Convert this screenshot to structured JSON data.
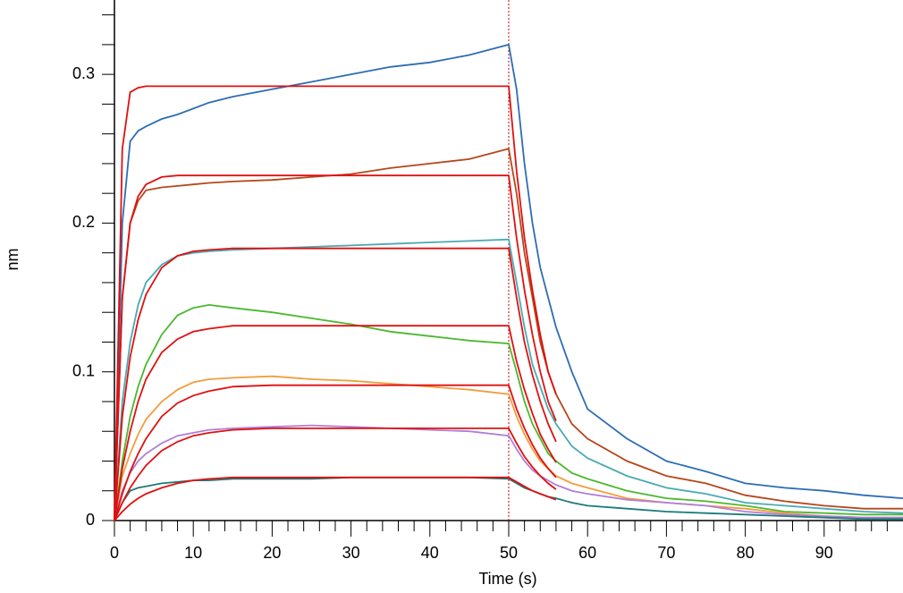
{
  "chart_data": {
    "type": "line",
    "x_label": "Time (s)",
    "y_label": "nm",
    "x": [
      0,
      1,
      2,
      3,
      4,
      6,
      8,
      10,
      12,
      15,
      20,
      25,
      30,
      35,
      40,
      45,
      50,
      51,
      52,
      53,
      54,
      55,
      56,
      58,
      60,
      65,
      70,
      75,
      80,
      85,
      90,
      95,
      100
    ],
    "series": [
      {
        "color": "#2e6db4",
        "values": [
          0,
          0.2,
          0.255,
          0.262,
          0.265,
          0.27,
          0.273,
          0.277,
          0.281,
          0.285,
          0.29,
          0.295,
          0.3,
          0.305,
          0.308,
          0.313,
          0.32,
          0.29,
          0.24,
          0.2,
          0.17,
          0.15,
          0.13,
          0.1,
          0.075,
          0.055,
          0.04,
          0.033,
          0.025,
          0.022,
          0.02,
          0.017,
          0.015
        ]
      },
      {
        "color": "#b5471b",
        "values": [
          0,
          0.15,
          0.2,
          0.215,
          0.222,
          0.224,
          0.225,
          0.226,
          0.227,
          0.228,
          0.229,
          0.231,
          0.233,
          0.237,
          0.24,
          0.243,
          0.25,
          0.22,
          0.18,
          0.15,
          0.12,
          0.1,
          0.085,
          0.065,
          0.055,
          0.04,
          0.03,
          0.025,
          0.017,
          0.013,
          0.01,
          0.008,
          0.008
        ]
      },
      {
        "color": "#4aaab4",
        "values": [
          0,
          0.08,
          0.12,
          0.145,
          0.16,
          0.172,
          0.178,
          0.18,
          0.181,
          0.182,
          0.183,
          0.184,
          0.185,
          0.186,
          0.187,
          0.188,
          0.189,
          0.16,
          0.13,
          0.105,
          0.09,
          0.075,
          0.065,
          0.05,
          0.042,
          0.03,
          0.022,
          0.018,
          0.012,
          0.01,
          0.008,
          0.006,
          0.005
        ]
      },
      {
        "color": "#4cb82f",
        "values": [
          0,
          0.04,
          0.07,
          0.09,
          0.105,
          0.125,
          0.138,
          0.143,
          0.145,
          0.143,
          0.14,
          0.136,
          0.132,
          0.127,
          0.124,
          0.121,
          0.119,
          0.1,
          0.08,
          0.065,
          0.055,
          0.045,
          0.04,
          0.032,
          0.028,
          0.02,
          0.015,
          0.013,
          0.01,
          0.006,
          0.005,
          0.004,
          0.004
        ]
      },
      {
        "color": "#f39c3c",
        "values": [
          0,
          0.03,
          0.045,
          0.058,
          0.068,
          0.08,
          0.088,
          0.093,
          0.095,
          0.096,
          0.097,
          0.095,
          0.094,
          0.092,
          0.09,
          0.088,
          0.085,
          0.07,
          0.058,
          0.048,
          0.04,
          0.035,
          0.03,
          0.025,
          0.022,
          0.015,
          0.012,
          0.01,
          0.008,
          0.005,
          0.003,
          0.002,
          0.002
        ]
      },
      {
        "color": "#b07ed8",
        "values": [
          0,
          0.02,
          0.032,
          0.04,
          0.045,
          0.052,
          0.057,
          0.059,
          0.061,
          0.062,
          0.063,
          0.064,
          0.063,
          0.062,
          0.061,
          0.06,
          0.057,
          0.048,
          0.04,
          0.034,
          0.03,
          0.027,
          0.024,
          0.02,
          0.018,
          0.014,
          0.012,
          0.01,
          0.006,
          0.004,
          0.003,
          0.002,
          0.002
        ]
      },
      {
        "color": "#1f7a7a",
        "values": [
          0,
          0.012,
          0.02,
          0.022,
          0.023,
          0.025,
          0.026,
          0.027,
          0.027,
          0.028,
          0.028,
          0.028,
          0.029,
          0.029,
          0.029,
          0.029,
          0.028,
          0.025,
          0.022,
          0.02,
          0.018,
          0.016,
          0.015,
          0.012,
          0.01,
          0.008,
          0.006,
          0.005,
          0.004,
          0.003,
          0.002,
          0.001,
          0.001
        ]
      },
      {
        "color": "#e01010",
        "values": [
          0,
          0.25,
          0.288,
          0.291,
          0.292,
          0.292,
          0.292,
          0.292,
          0.292,
          0.292,
          0.292,
          0.292,
          0.292,
          0.292,
          0.292,
          0.292,
          0.292,
          0.235,
          0.19,
          0.155,
          0.125,
          0.1,
          0.085,
          null,
          null,
          null,
          null,
          null,
          null,
          null,
          null,
          null,
          null
        ]
      },
      {
        "color": "#e01010",
        "values": [
          0,
          0.15,
          0.2,
          0.218,
          0.226,
          0.231,
          0.232,
          0.232,
          0.232,
          0.232,
          0.232,
          0.232,
          0.232,
          0.232,
          0.232,
          0.232,
          0.232,
          0.19,
          0.155,
          0.125,
          0.1,
          0.08,
          0.067,
          null,
          null,
          null,
          null,
          null,
          null,
          null,
          null,
          null,
          null
        ]
      },
      {
        "color": "#e01010",
        "values": [
          0,
          0.07,
          0.11,
          0.135,
          0.152,
          0.17,
          0.178,
          0.181,
          0.182,
          0.183,
          0.183,
          0.183,
          0.183,
          0.183,
          0.183,
          0.183,
          0.183,
          0.15,
          0.12,
          0.098,
          0.08,
          0.065,
          0.053,
          null,
          null,
          null,
          null,
          null,
          null,
          null,
          null,
          null,
          null
        ]
      },
      {
        "color": "#e01010",
        "values": [
          0,
          0.035,
          0.06,
          0.08,
          0.095,
          0.113,
          0.122,
          0.127,
          0.129,
          0.131,
          0.131,
          0.131,
          0.131,
          0.131,
          0.131,
          0.131,
          0.131,
          0.107,
          0.088,
          0.072,
          0.058,
          0.048,
          0.039,
          null,
          null,
          null,
          null,
          null,
          null,
          null,
          null,
          null,
          null
        ]
      },
      {
        "color": "#e01010",
        "values": [
          0,
          0.018,
          0.033,
          0.045,
          0.055,
          0.07,
          0.079,
          0.084,
          0.087,
          0.09,
          0.091,
          0.091,
          0.091,
          0.091,
          0.091,
          0.091,
          0.091,
          0.075,
          0.062,
          0.051,
          0.042,
          0.035,
          0.029,
          null,
          null,
          null,
          null,
          null,
          null,
          null,
          null,
          null,
          null
        ]
      },
      {
        "color": "#e01010",
        "values": [
          0,
          0.012,
          0.022,
          0.03,
          0.037,
          0.047,
          0.053,
          0.057,
          0.059,
          0.061,
          0.062,
          0.062,
          0.062,
          0.062,
          0.062,
          0.062,
          0.062,
          0.052,
          0.043,
          0.036,
          0.03,
          0.025,
          0.021,
          null,
          null,
          null,
          null,
          null,
          null,
          null,
          null,
          null,
          null
        ]
      },
      {
        "color": "#e01010",
        "values": [
          0,
          0.006,
          0.011,
          0.015,
          0.018,
          0.022,
          0.025,
          0.027,
          0.028,
          0.029,
          0.029,
          0.029,
          0.029,
          0.029,
          0.029,
          0.029,
          0.029,
          0.026,
          0.023,
          0.02,
          0.018,
          0.016,
          0.014,
          null,
          null,
          null,
          null,
          null,
          null,
          null,
          null,
          null,
          null
        ]
      }
    ],
    "xlim": [
      0,
      100
    ],
    "ylim": [
      0,
      0.35
    ],
    "xticks": [
      0,
      10,
      20,
      30,
      40,
      50,
      60,
      70,
      80,
      90
    ],
    "yticks": [
      0,
      0.1,
      0.2,
      0.3
    ],
    "xminorticks": [
      2,
      4,
      6,
      8,
      12,
      14,
      16,
      18,
      22,
      24,
      26,
      28,
      32,
      34,
      36,
      38,
      42,
      44,
      46,
      48,
      52,
      54,
      56,
      58,
      62,
      64,
      66,
      68,
      72,
      74,
      76,
      78,
      82,
      84,
      86,
      88,
      92,
      94,
      96,
      98
    ],
    "yminorticks": [
      0.02,
      0.04,
      0.06,
      0.08,
      0.12,
      0.14,
      0.16,
      0.18,
      0.22,
      0.24,
      0.26,
      0.28,
      0.32,
      0.34
    ],
    "vlines": [
      {
        "x": 50,
        "color": "#cc0000"
      }
    ],
    "grid": false
  }
}
